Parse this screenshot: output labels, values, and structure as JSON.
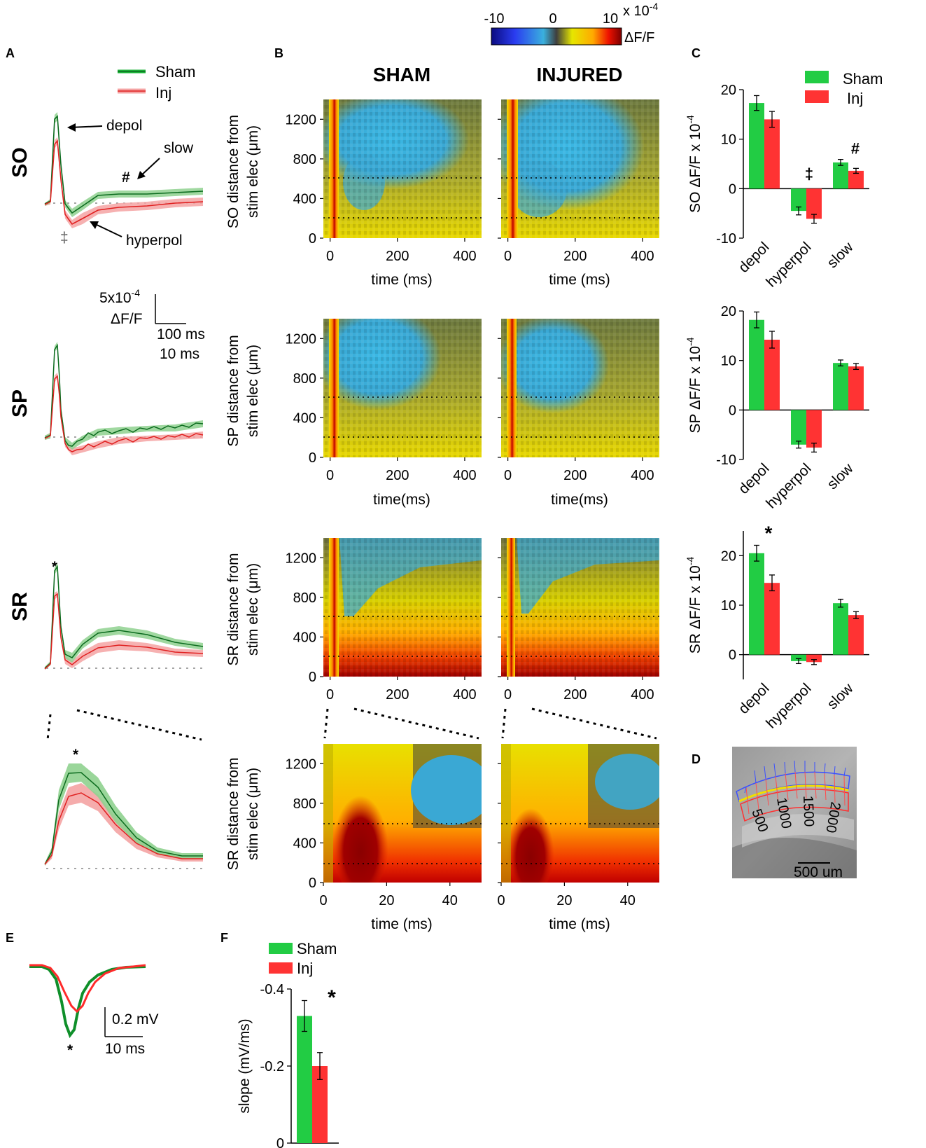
{
  "panel_labels": {
    "A": "A",
    "B": "B",
    "C": "C",
    "D": "D",
    "E": "E",
    "F": "F"
  },
  "region_labels": {
    "so": "SO",
    "sp": "SP",
    "sr": "SR"
  },
  "headers": {
    "sham": "SHAM",
    "injured": "INJURED"
  },
  "colors": {
    "sham": "#1db33a",
    "inj": "#ef2f2f",
    "sham_bar": "#22cc44",
    "inj_bar": "#ff3333",
    "shade_sham": "#8fd18f",
    "shade_inj": "#f4a3a3",
    "heat_blue": "#3ab0de",
    "heat_dark": "#3e3e3e"
  },
  "colorbar": {
    "min_label": "-10",
    "zero_label": "0",
    "max_label": "10",
    "scale_label": "x 10",
    "scale_exp": "-4",
    "unit": "ΔF/F"
  },
  "legend": {
    "sham": "Sham",
    "inj": "Inj"
  },
  "panel_a": {
    "ann_depol": "depol",
    "ann_slow": "slow",
    "ann_hyperpol": "hyperpol",
    "hash": "#",
    "dagger": "‡",
    "star": "*",
    "scalebar_amp": "5x10",
    "scalebar_amp_exp": "-4",
    "scalebar_unit": "ΔF/F",
    "scalebar_time_long": "100 ms",
    "scalebar_time_short": "10 ms"
  },
  "panel_b": {
    "ylabel_so": "SO distance from",
    "ylabel_sp": "SP distance from",
    "ylabel_sr": "SR distance from",
    "ylabel_line2": "stim elec (μm)",
    "xlabel_time": "time (ms)",
    "xlabel_time_nospace": "time(ms)",
    "yticks": [
      "0",
      "400",
      "800",
      "1200"
    ],
    "xticks_long": [
      "0",
      "200",
      "400"
    ],
    "xticks_short": [
      "0",
      "20",
      "40"
    ]
  },
  "panel_d": {
    "scale_label": "500 um",
    "distance_labels": [
      "500",
      "1000",
      "1500",
      "2000"
    ]
  },
  "panel_e": {
    "amp_label": "0.2 mV",
    "time_label": "10 ms",
    "star": "*"
  },
  "chart_data": [
    {
      "id": "C-SO",
      "type": "bar",
      "title": "",
      "categories": [
        "depol",
        "hyperpol",
        "slow"
      ],
      "ylabel_prefix": "SO",
      "ylabel": "ΔF/F x 10",
      "ylabel_exp": "-4",
      "ylim": [
        -10,
        20
      ],
      "yticks": [
        "-10",
        "0",
        "10",
        "20"
      ],
      "series": [
        {
          "name": "Sham",
          "values": [
            17.3,
            -4.5,
            5.3
          ],
          "errors": [
            1.5,
            0.8,
            0.6
          ]
        },
        {
          "name": "Inj",
          "values": [
            14.0,
            -6.1,
            3.6
          ],
          "errors": [
            1.6,
            0.9,
            0.5
          ]
        }
      ],
      "annotations": [
        {
          "category": "hyperpol",
          "text": "‡"
        },
        {
          "category": "slow",
          "text": "#"
        }
      ]
    },
    {
      "id": "C-SP",
      "type": "bar",
      "title": "",
      "categories": [
        "depol",
        "hyperpol",
        "slow"
      ],
      "ylabel_prefix": "SP",
      "ylabel": "ΔF/F x 10",
      "ylabel_exp": "-4",
      "ylim": [
        -10,
        20
      ],
      "yticks": [
        "-10",
        "0",
        "10",
        "20"
      ],
      "series": [
        {
          "name": "Sham",
          "values": [
            18.2,
            -7.0,
            9.5
          ],
          "errors": [
            1.6,
            0.7,
            0.6
          ]
        },
        {
          "name": "Inj",
          "values": [
            14.2,
            -7.6,
            8.8
          ],
          "errors": [
            1.7,
            0.9,
            0.6
          ]
        }
      ],
      "annotations": []
    },
    {
      "id": "C-SR",
      "type": "bar",
      "title": "",
      "categories": [
        "depol",
        "hyperpol",
        "slow"
      ],
      "ylabel_prefix": "SR",
      "ylabel": "ΔF/F x 10",
      "ylabel_exp": "-4",
      "ylim": [
        -5,
        25
      ],
      "yticks": [
        "0",
        "10",
        "20"
      ],
      "series": [
        {
          "name": "Sham",
          "values": [
            20.5,
            -1.3,
            10.4
          ],
          "errors": [
            1.6,
            0.5,
            0.8
          ]
        },
        {
          "name": "Inj",
          "values": [
            14.5,
            -1.5,
            8.0
          ],
          "errors": [
            1.6,
            0.5,
            0.7
          ]
        }
      ],
      "annotations": [
        {
          "category": "depol",
          "text": "*"
        }
      ]
    },
    {
      "id": "F",
      "type": "bar",
      "title": "",
      "categories": [
        ""
      ],
      "ylabel": "slope (mV/ms)",
      "ylim": [
        0,
        -0.4
      ],
      "yticks": [
        "0",
        "-0.2",
        "-0.4"
      ],
      "series": [
        {
          "name": "Sham",
          "values": [
            -0.33
          ],
          "errors": [
            0.04
          ]
        },
        {
          "name": "Inj",
          "values": [
            -0.2
          ],
          "errors": [
            0.035
          ]
        }
      ],
      "annotations": [
        {
          "category": "",
          "text": "*"
        }
      ]
    }
  ]
}
